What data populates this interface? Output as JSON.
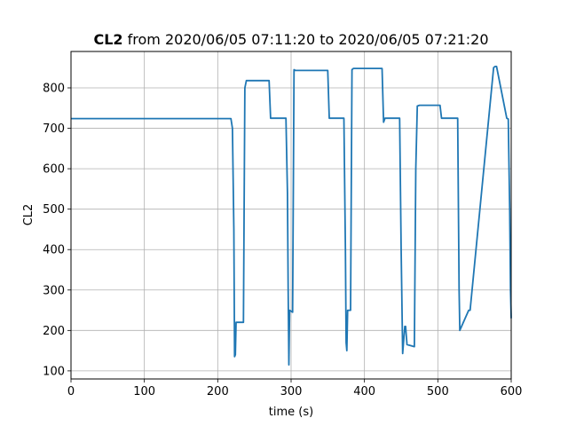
{
  "chart_data": {
    "type": "line",
    "title": {
      "bold": "CL2",
      "rest": " from 2020/06/05 07:11:20 to 2020/06/05 07:21:20"
    },
    "xlabel": "time (s)",
    "ylabel": "CL2",
    "xlim": [
      0,
      600
    ],
    "ylim": [
      80,
      890
    ],
    "x_ticks": [
      0,
      100,
      200,
      300,
      400,
      500,
      600
    ],
    "y_ticks": [
      100,
      200,
      300,
      400,
      500,
      600,
      700,
      800
    ],
    "grid": true,
    "series": [
      {
        "color": "#1f77b4",
        "x": [
          0,
          100,
          200,
          218,
          220,
          222,
          223,
          224,
          225,
          235,
          237,
          239,
          270,
          272,
          293,
          295,
          296,
          297,
          298,
          302,
          304,
          306,
          350,
          352,
          372,
          374,
          375,
          376,
          377,
          381,
          383,
          385,
          424,
          426,
          428,
          448,
          450,
          452,
          455,
          456,
          458,
          468,
          470,
          472,
          475,
          503,
          505,
          527,
          529,
          530,
          542,
          544,
          576,
          578,
          580,
          594,
          596,
          598,
          599,
          600
        ],
        "y": [
          724,
          724,
          724,
          724,
          700,
          450,
          135,
          140,
          220,
          220,
          800,
          818,
          818,
          725,
          725,
          540,
          300,
          115,
          250,
          245,
          845,
          843,
          843,
          725,
          725,
          400,
          170,
          150,
          250,
          250,
          845,
          848,
          848,
          715,
          725,
          725,
          400,
          143,
          210,
          210,
          165,
          160,
          600,
          755,
          757,
          757,
          725,
          725,
          300,
          200,
          250,
          250,
          850,
          853,
          853,
          725,
          723,
          500,
          300,
          230
        ]
      }
    ]
  }
}
